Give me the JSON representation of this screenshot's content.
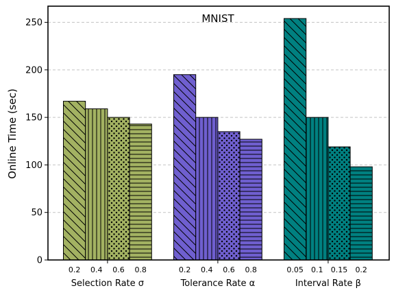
{
  "chart_data": {
    "type": "bar",
    "title": "MNIST",
    "ylabel": "Online Time (sec)",
    "ylim": [
      0,
      267
    ],
    "yticks": [
      0,
      50,
      100,
      150,
      200,
      250
    ],
    "grid": "y-dashed",
    "groups": [
      {
        "label": "Selection Rate  σ",
        "color": "#a3b262",
        "categories": [
          "0.2",
          "0.4",
          "0.6",
          "0.8"
        ],
        "values": [
          167,
          159,
          150,
          143
        ]
      },
      {
        "label": "Tolerance Rate  α",
        "color": "#6f5fcf",
        "categories": [
          "0.2",
          "0.4",
          "0.6",
          "0.8"
        ],
        "values": [
          195,
          150,
          135,
          127
        ]
      },
      {
        "label": "Interval Rate  β",
        "color": "#008080",
        "categories": [
          "0.05",
          "0.1",
          "0.15",
          "0.2"
        ],
        "values": [
          254,
          150,
          119,
          98
        ]
      }
    ],
    "hatches": [
      "backslash",
      "vertical",
      "dots",
      "horizontal"
    ]
  }
}
